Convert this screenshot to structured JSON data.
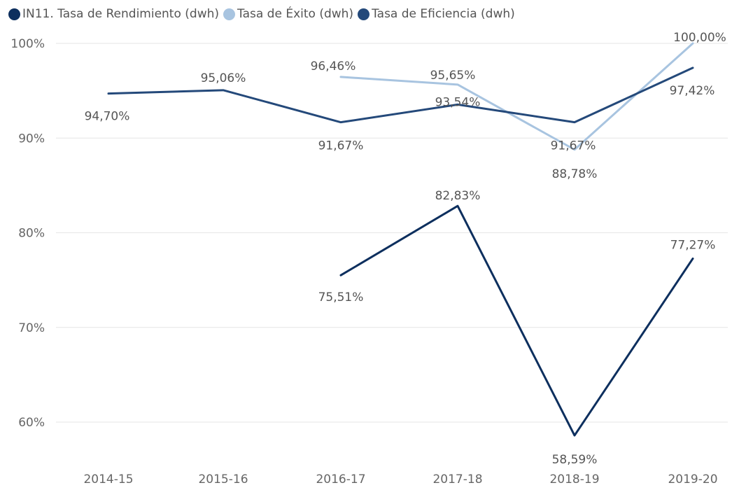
{
  "chart_data": {
    "type": "line",
    "categories": [
      "2014-15",
      "2015-16",
      "2016-17",
      "2017-18",
      "2018-19",
      "2019-20"
    ],
    "ylim": [
      0.56,
      1.0
    ],
    "yticks": [
      {
        "value": 1.0,
        "label": "100%"
      },
      {
        "value": 0.9,
        "label": "90%"
      },
      {
        "value": 0.8,
        "label": "80%"
      },
      {
        "value": 0.7,
        "label": "70%"
      },
      {
        "value": 0.6,
        "label": "60%"
      }
    ],
    "grid": true,
    "legend_position": "top-left",
    "series": [
      {
        "name": "IN11. Tasa de Rendimiento (dwh)",
        "color": "#0d2f5e",
        "values": [
          null,
          null,
          0.7551,
          0.8283,
          0.5859,
          0.7727
        ],
        "labels": [
          null,
          null,
          "75,51%",
          "82,83%",
          "58,59%",
          "77,27%"
        ]
      },
      {
        "name": "Tasa de Éxito (dwh)",
        "color": "#a8c4e0",
        "values": [
          null,
          null,
          0.9646,
          0.9565,
          0.8878,
          1.0
        ],
        "labels": [
          null,
          null,
          "96,46%",
          "95,65%",
          "88,78%",
          "100,00%"
        ]
      },
      {
        "name": "Tasa de Eficiencia (dwh)",
        "color": "#24497a",
        "values": [
          0.947,
          0.9506,
          0.9167,
          0.9354,
          0.9167,
          0.9742
        ],
        "labels": [
          "94,70%",
          "95,06%",
          "91,67%",
          "93,54%",
          "91,67%",
          "97,42%"
        ]
      }
    ]
  }
}
